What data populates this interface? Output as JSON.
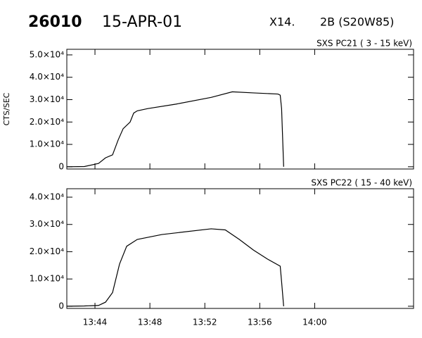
{
  "header": {
    "id": "26010",
    "date": "15-APR-01",
    "class": "X14.",
    "location": "2B (S20W85)"
  },
  "chart_data": [
    {
      "type": "line",
      "title": "SXS PC21  (  3 - 15 keV)",
      "y_label": "CTS/SEC",
      "color": "#000000",
      "x": [
        821.95,
        823.23,
        824.26,
        824.77,
        825.28,
        825.69,
        826.05,
        826.56,
        826.82,
        827.08,
        827.85,
        829.9,
        832.46,
        834.0,
        835.54,
        837.33,
        837.49,
        837.59,
        837.74
      ],
      "values": [
        0,
        100,
        1500,
        4000,
        5300,
        12000,
        17000,
        20000,
        24000,
        25000,
        26000,
        28000,
        31000,
        33500,
        33000,
        32500,
        32000,
        26000,
        0
      ],
      "xlim": [
        821.95,
        847.2
      ],
      "ylim": [
        -1000,
        52500
      ],
      "yticks": [
        0,
        {
          "value": 10000,
          "label": "1.0×10⁴"
        },
        {
          "value": 20000,
          "label": "2.0×10⁴"
        },
        {
          "value": 30000,
          "label": "3.0×10⁴"
        },
        {
          "value": 40000,
          "label": "4.0×10⁴"
        },
        {
          "value": 50000,
          "label": "5.0×10⁴"
        }
      ]
    },
    {
      "type": "line",
      "title": "SXS PC22  ( 15 - 40 keV)",
      "color": "#000000",
      "x": [
        821.95,
        823.23,
        824.26,
        824.77,
        825.28,
        825.79,
        826.31,
        827.08,
        828.87,
        832.46,
        833.49,
        834.51,
        835.54,
        836.56,
        837.49,
        837.59,
        837.74
      ],
      "values": [
        0,
        100,
        300,
        1500,
        5000,
        15500,
        22000,
        24500,
        26300,
        28400,
        28000,
        24500,
        20600,
        17300,
        14700,
        9000,
        0
      ],
      "xlim": [
        821.95,
        847.2
      ],
      "ylim": [
        -800,
        43100
      ],
      "yticks": [
        0,
        {
          "value": 10000,
          "label": "1.0×10⁴"
        },
        {
          "value": 20000,
          "label": "2.0×10⁴"
        },
        {
          "value": 30000,
          "label": "3.0×10⁴"
        },
        {
          "value": 40000,
          "label": "4.0×10⁴"
        }
      ],
      "xticks": [
        {
          "value": 824,
          "label": "13:44"
        },
        {
          "value": 828,
          "label": "13:48"
        },
        {
          "value": 832,
          "label": "13:52"
        },
        {
          "value": 836,
          "label": "13:56"
        },
        {
          "value": 840,
          "label": "14:00"
        }
      ]
    }
  ]
}
